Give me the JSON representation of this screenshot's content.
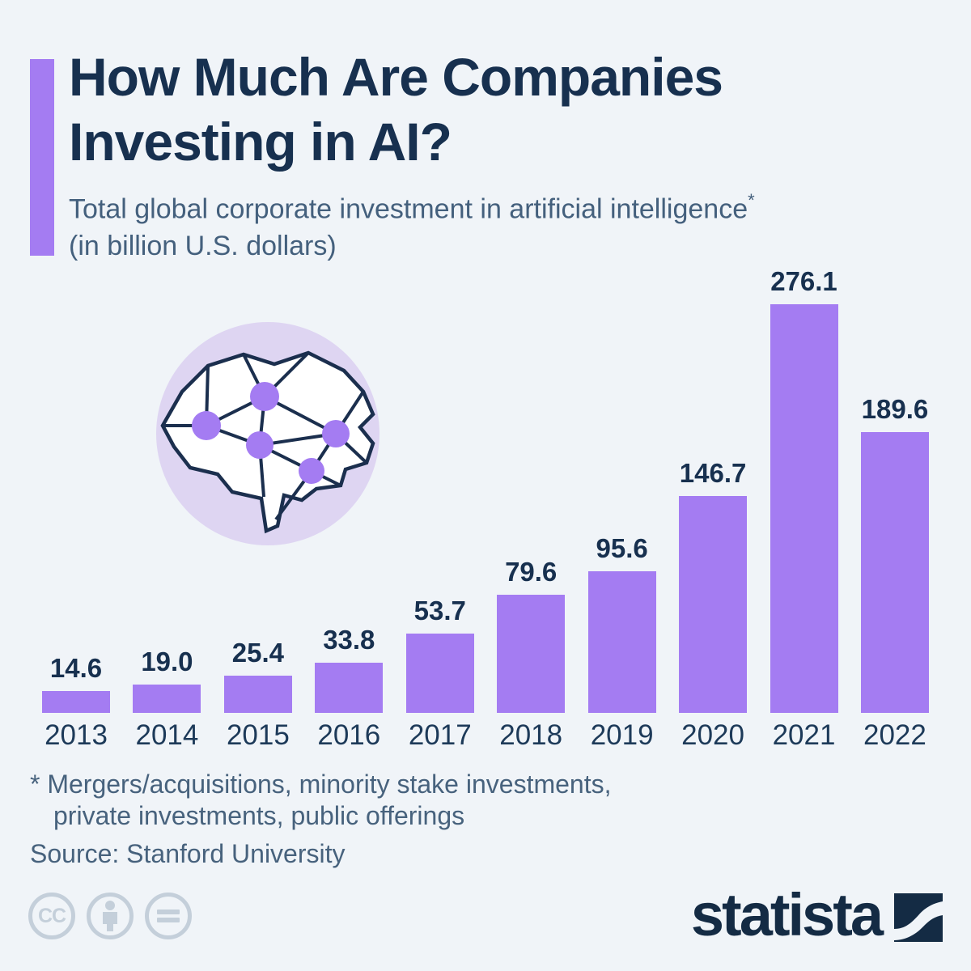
{
  "header": {
    "title": "How Much Are Companies Investing in AI?",
    "subtitle_main": "Total global corporate investment in artificial intelligence",
    "subtitle_marker": "*",
    "subtitle_line2": "(in billion U.S. dollars)"
  },
  "chart_data": {
    "type": "bar",
    "categories": [
      "2013",
      "2014",
      "2015",
      "2016",
      "2017",
      "2018",
      "2019",
      "2020",
      "2021",
      "2022"
    ],
    "values": [
      14.6,
      19.0,
      25.4,
      33.8,
      53.7,
      79.6,
      95.6,
      146.7,
      276.1,
      189.6
    ],
    "value_labels": [
      "14.6",
      "19.0",
      "25.4",
      "33.8",
      "53.7",
      "79.6",
      "95.6",
      "146.7",
      "276.1",
      "189.6"
    ],
    "title": "How Much Are Companies Investing in AI?",
    "xlabel": "",
    "ylabel": "Total global corporate investment in artificial intelligence (billion U.S. dollars)",
    "ylim": [
      0,
      300
    ],
    "grid": false,
    "legend": false,
    "bar_color": "#a47cf2",
    "label_color": "#17304f"
  },
  "footnote": {
    "marker": "*",
    "line1": "Mergers/acquisitions, minority stake investments,",
    "line2": "private investments, public offerings",
    "source": "Source: Stanford University"
  },
  "branding": {
    "logo_text": "statista",
    "cc_label": "CC",
    "colors": {
      "accent": "#a47cf2",
      "navy": "#142b44",
      "cc_gray": "#c4cfda",
      "background": "#f0f4f8"
    }
  },
  "illustration": {
    "name": "low-poly-brain-network",
    "circle_color": "#ded5f2",
    "brain_fill": "#ffffff",
    "line_color": "#1b2f4e",
    "node_color": "#a47cf2"
  }
}
